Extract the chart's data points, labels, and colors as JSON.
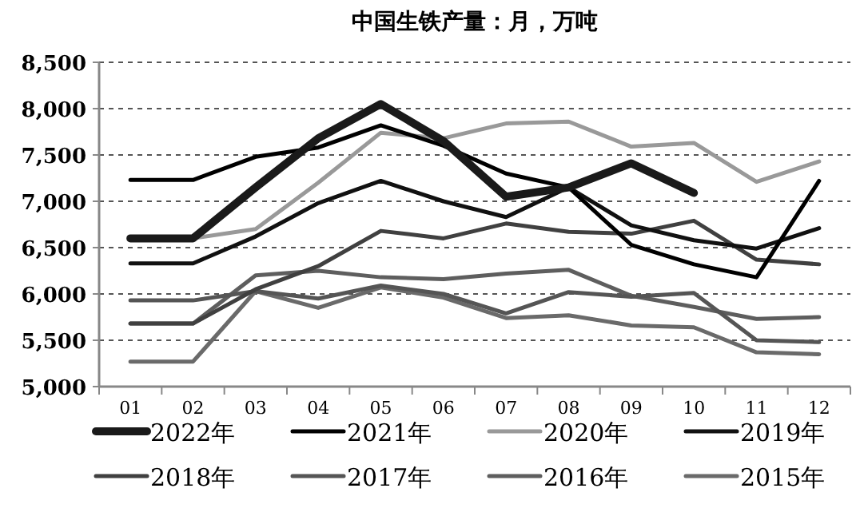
{
  "chart_data": {
    "type": "line",
    "title": "中国生铁产量：月，万吨",
    "categories": [
      "01",
      "02",
      "03",
      "04",
      "05",
      "06",
      "07",
      "08",
      "09",
      "10",
      "11",
      "12"
    ],
    "series": [
      {
        "name": "2022年",
        "color": "#1a1a1a",
        "values": [
          6600,
          6600,
          7150,
          7680,
          8050,
          7650,
          7050,
          7150,
          7410,
          7090,
          null,
          null
        ]
      },
      {
        "name": "2021年",
        "color": "#000000",
        "values": [
          7230,
          7230,
          7480,
          7580,
          7820,
          7600,
          7300,
          7150,
          6530,
          6320,
          6180,
          7220
        ]
      },
      {
        "name": "2020年",
        "color": "#999999",
        "values": [
          6600,
          6600,
          6700,
          7200,
          7740,
          7680,
          7840,
          7860,
          7590,
          7630,
          7210,
          7430
        ]
      },
      {
        "name": "2019年",
        "color": "#111111",
        "values": [
          6330,
          6330,
          6620,
          6980,
          7220,
          7000,
          6830,
          7150,
          6740,
          6580,
          6490,
          6710
        ]
      },
      {
        "name": "2018年",
        "color": "#404040",
        "values": [
          5680,
          5680,
          6050,
          6300,
          6680,
          6600,
          6760,
          6670,
          6650,
          6790,
          6370,
          6320
        ]
      },
      {
        "name": "2017年",
        "color": "#555555",
        "values": [
          5930,
          5930,
          6030,
          5950,
          6090,
          6000,
          5790,
          6020,
          5970,
          6010,
          5500,
          5480
        ]
      },
      {
        "name": "2016年",
        "color": "#5e5e5e",
        "values": [
          5680,
          5680,
          6200,
          6250,
          6180,
          6160,
          6220,
          6260,
          5980,
          5860,
          5730,
          5750
        ]
      },
      {
        "name": "2015年",
        "color": "#6a6a6a",
        "values": [
          5270,
          5270,
          6030,
          5850,
          6070,
          5960,
          5740,
          5770,
          5660,
          5640,
          5370,
          5350
        ]
      }
    ],
    "ylim": [
      5000,
      8500
    ],
    "yticks": [
      {
        "value": 5000,
        "label": "5,000"
      },
      {
        "value": 5500,
        "label": "5,500"
      },
      {
        "value": 6000,
        "label": "6,000"
      },
      {
        "value": 6500,
        "label": "6,500"
      },
      {
        "value": 7000,
        "label": "7,000"
      },
      {
        "value": 7500,
        "label": "7,500"
      },
      {
        "value": 8000,
        "label": "8,000"
      },
      {
        "value": 8500,
        "label": "8,500"
      }
    ],
    "grid": "y",
    "legend": "bottom",
    "marker": "none",
    "line_style": "solid"
  }
}
